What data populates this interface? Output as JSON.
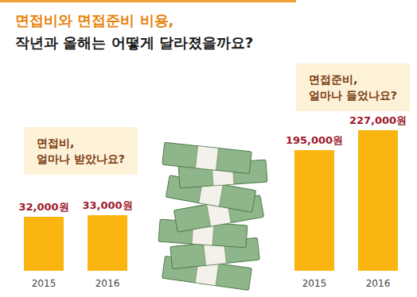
{
  "title": "면접비와 면접준비 비용,\n작년과 올해는 어떻게 달라졌을까요?",
  "chart_data": [
    {
      "type": "bar",
      "title": "면접비,\n얼마나 받았나요?",
      "categories": [
        "2015",
        "2016"
      ],
      "values": [
        32000,
        33000
      ],
      "value_labels": [
        "32,000원",
        "33,000원"
      ],
      "data_labels": true,
      "color": "#fbb511",
      "ylim": [
        0,
        40000
      ],
      "yticks": [
        0,
        40000
      ],
      "grid": false,
      "tick_labels": "x"
    },
    {
      "type": "bar",
      "title": "면접준비,\n얼마나 들었나요?",
      "categories": [
        "2015",
        "2016"
      ],
      "values": [
        195000,
        227000
      ],
      "value_labels": [
        "195,000원",
        "227,000원"
      ],
      "data_labels": true,
      "color": "#fbb511",
      "ylim": [
        0,
        250000
      ],
      "yticks": [
        0,
        250000
      ],
      "grid": false,
      "tick_labels": "x"
    }
  ]
}
